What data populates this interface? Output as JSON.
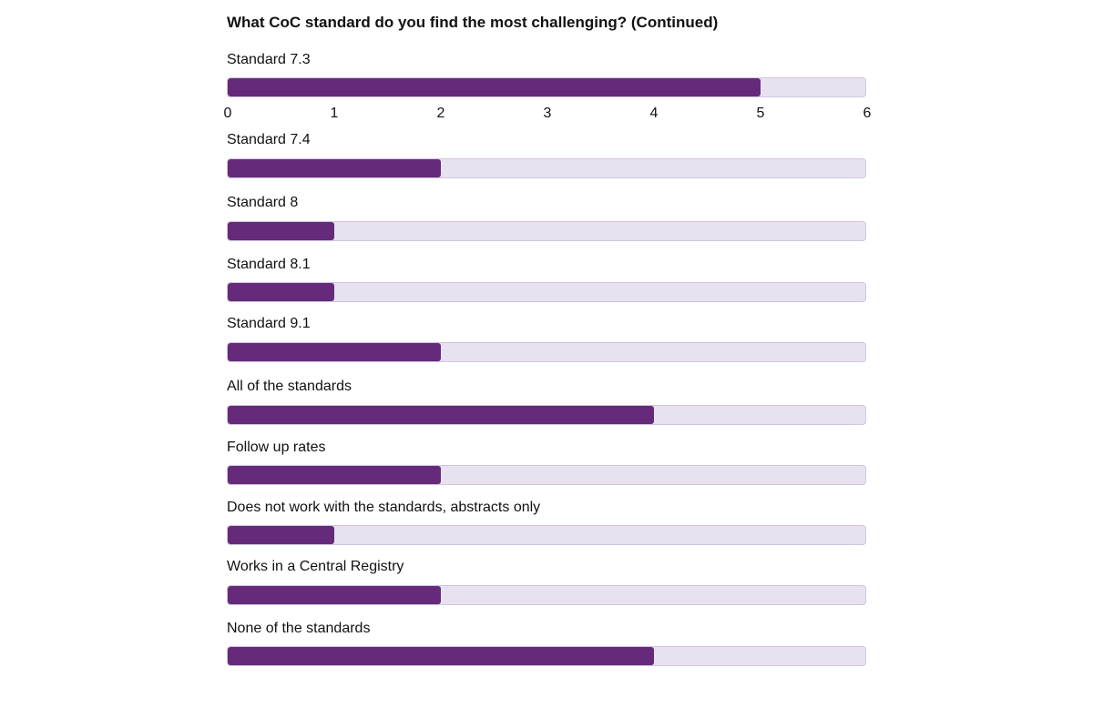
{
  "chart_data": {
    "type": "bar",
    "orientation": "horizontal",
    "title": "What CoC standard do you find the most challenging? (Continued)",
    "categories": [
      "Standard 7.3",
      "Standard 7.4",
      "Standard 8",
      "Standard 8.1",
      "Standard 9.1",
      "All of the standards",
      "Follow up rates",
      "Does not work with the standards, abstracts only",
      "Works in a Central Registry",
      "None of the standards"
    ],
    "values": [
      5,
      2,
      1,
      1,
      2,
      4,
      2,
      1,
      2,
      4
    ],
    "xlim": [
      0,
      6
    ],
    "x_ticks": [
      "0",
      "1",
      "2",
      "3",
      "4",
      "5",
      "6"
    ],
    "grid": false,
    "legend": "none",
    "colors": {
      "fill": "#662a7a",
      "track": "#e8e1ef",
      "track_border": "#cfc5e2"
    }
  }
}
